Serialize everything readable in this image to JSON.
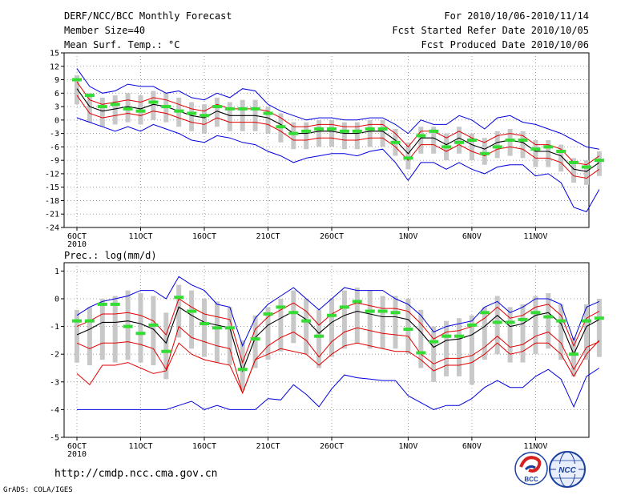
{
  "header": {
    "title": "DERF/NCC/BCC Monthly Forecast",
    "member_size": "Member Size=40",
    "variable": "Mean Surf. Temp.: °C",
    "period": "For 2010/10/06-2010/11/14",
    "started": "Fcst Started Refer Date 2010/10/05",
    "produced": "Fcst Produced Date 2010/10/06"
  },
  "footer": {
    "url": "http://cmdp.ncc.cma.gov.cn",
    "grads": "GrADS: COLA/IGES",
    "logo1_text": "BCC",
    "logo2_text": "NCC"
  },
  "colors": {
    "ensemble_bar": "#c8c8c8",
    "mean": "#000000",
    "spread": "#e00000",
    "extreme": "#0000e0",
    "green": "#33dd33"
  },
  "chart_data": [
    {
      "type": "line",
      "name": "temperature",
      "title": "Mean Surf. Temp.: °C",
      "ylim": [
        -24,
        15
      ],
      "yticks": [
        15,
        12,
        9,
        6,
        3,
        0,
        -3,
        -6,
        -9,
        -12,
        -15,
        -18,
        -21,
        -24
      ],
      "xticks": [
        {
          "day": 0,
          "label": "6OCT"
        },
        {
          "day": 5,
          "label": "11OCT"
        },
        {
          "day": 10,
          "label": "16OCT"
        },
        {
          "day": 15,
          "label": "21OCT"
        },
        {
          "day": 20,
          "label": "26OCT"
        },
        {
          "day": 26,
          "label": "1NOV"
        },
        {
          "day": 31,
          "label": "6NOV"
        },
        {
          "day": 36,
          "label": "11NOV"
        }
      ],
      "year_label": "2010",
      "mean": [
        7.0,
        3.0,
        2.0,
        2.5,
        3.0,
        2.5,
        3.5,
        3.0,
        2.0,
        1.0,
        0.5,
        2.0,
        1.0,
        1.0,
        1.0,
        0.5,
        -1.0,
        -3.0,
        -3.0,
        -2.5,
        -2.5,
        -3.0,
        -3.0,
        -2.5,
        -2.5,
        -4.5,
        -7.5,
        -4.0,
        -4.0,
        -5.5,
        -4.0,
        -5.5,
        -6.5,
        -5.0,
        -4.5,
        -5.0,
        -7.0,
        -7.0,
        -8.0,
        -11.0,
        -11.5,
        -9.5
      ],
      "upper": [
        8.5,
        4.5,
        3.5,
        4.0,
        4.5,
        4.0,
        5.0,
        4.5,
        3.5,
        2.5,
        2.0,
        3.5,
        2.5,
        2.5,
        2.5,
        2.0,
        0.5,
        -1.5,
        -1.5,
        -1.0,
        -1.0,
        -1.5,
        -1.5,
        -1.0,
        -1.0,
        -3.0,
        -6.0,
        -2.5,
        -2.5,
        -4.0,
        -2.5,
        -4.0,
        -5.0,
        -3.5,
        -3.0,
        -3.5,
        -5.5,
        -5.5,
        -6.5,
        -9.5,
        -10.0,
        -8.0
      ],
      "lower": [
        5.5,
        1.5,
        0.5,
        1.0,
        1.5,
        1.0,
        2.0,
        1.5,
        0.5,
        -0.5,
        -1.0,
        0.5,
        -0.5,
        -0.5,
        -0.5,
        -1.0,
        -2.5,
        -4.5,
        -4.5,
        -4.0,
        -4.0,
        -4.5,
        -4.5,
        -4.0,
        -4.0,
        -6.0,
        -9.0,
        -5.5,
        -5.5,
        -7.0,
        -5.5,
        -7.0,
        -8.0,
        -6.5,
        -6.0,
        -6.5,
        -8.5,
        -8.5,
        -9.5,
        -12.5,
        -13.0,
        -11.0
      ],
      "max": [
        11.5,
        7.5,
        6.0,
        6.5,
        8.0,
        7.5,
        7.5,
        6.0,
        6.5,
        5.0,
        4.5,
        6.0,
        5.0,
        7.0,
        6.5,
        3.5,
        2.0,
        1.0,
        0.0,
        0.5,
        0.5,
        0.0,
        0.0,
        0.5,
        0.5,
        -1.0,
        -3.0,
        0.0,
        -1.0,
        -1.0,
        1.0,
        0.0,
        -2.0,
        0.5,
        1.0,
        -0.5,
        -1.0,
        -2.0,
        -3.0,
        -4.5,
        -6.0,
        -6.5
      ],
      "min": [
        0.5,
        -0.5,
        -1.5,
        -2.5,
        -1.5,
        -2.5,
        -1.0,
        -2.0,
        -3.0,
        -4.5,
        -5.0,
        -3.5,
        -4.0,
        -5.0,
        -5.5,
        -7.0,
        -8.0,
        -9.5,
        -8.5,
        -8.0,
        -7.5,
        -7.5,
        -8.0,
        -7.0,
        -6.5,
        -9.5,
        -13.5,
        -9.5,
        -9.5,
        -11.0,
        -9.5,
        -11.0,
        -12.0,
        -10.5,
        -10.0,
        -10.0,
        -12.5,
        -12.0,
        -14.0,
        -19.5,
        -20.5,
        -15.5
      ],
      "bar_high": [
        10.0,
        6.0,
        5.0,
        5.5,
        6.0,
        5.5,
        6.5,
        6.0,
        5.0,
        4.0,
        3.5,
        5.0,
        4.0,
        4.5,
        4.5,
        3.0,
        1.5,
        -0.5,
        -0.5,
        0.0,
        0.0,
        -0.5,
        -0.5,
        0.0,
        0.0,
        -2.0,
        -5.0,
        -1.5,
        -1.5,
        -3.0,
        -1.5,
        -3.0,
        -4.0,
        -2.5,
        -2.0,
        -2.5,
        -4.5,
        -4.5,
        -5.5,
        -8.5,
        -9.0,
        -7.0
      ],
      "bar_low": [
        3.5,
        -0.5,
        -1.5,
        -1.0,
        -0.5,
        -1.0,
        0.0,
        -0.5,
        -1.5,
        -2.5,
        -3.0,
        -1.5,
        -2.5,
        -2.5,
        -2.5,
        -3.0,
        -5.0,
        -6.5,
        -6.5,
        -6.0,
        -6.0,
        -6.5,
        -6.5,
        -6.0,
        -6.0,
        -8.0,
        -11.0,
        -7.5,
        -7.5,
        -9.0,
        -7.5,
        -9.0,
        -10.0,
        -8.5,
        -8.0,
        -8.5,
        -10.5,
        -10.5,
        -11.5,
        -14.0,
        -14.5,
        -12.5
      ],
      "green": [
        9.0,
        5.5,
        3.0,
        3.5,
        2.5,
        2.0,
        4.0,
        3.0,
        2.0,
        1.5,
        1.0,
        3.0,
        2.5,
        2.5,
        2.5,
        1.5,
        -1.5,
        -3.0,
        -2.5,
        -2.0,
        -2.0,
        -2.5,
        -2.5,
        -2.0,
        -2.0,
        -5.0,
        -8.5,
        -3.5,
        -2.5,
        -6.0,
        -5.0,
        -4.5,
        -7.5,
        -6.0,
        -4.5,
        -4.5,
        -6.5,
        -6.0,
        -7.0,
        -9.5,
        -10.5,
        -9.0
      ]
    },
    {
      "type": "line",
      "name": "precipitation",
      "title": "Prec.: log(mm/d)",
      "ylim": [
        -5,
        1.3
      ],
      "yticks": [
        1,
        0,
        -1,
        -2,
        -3,
        -4,
        -5
      ],
      "xticks": [
        {
          "day": 0,
          "label": "6OCT"
        },
        {
          "day": 5,
          "label": "11OCT"
        },
        {
          "day": 10,
          "label": "16OCT"
        },
        {
          "day": 15,
          "label": "21OCT"
        },
        {
          "day": 20,
          "label": "26OCT"
        },
        {
          "day": 26,
          "label": "1NOV"
        },
        {
          "day": 31,
          "label": "6NOV"
        },
        {
          "day": 36,
          "label": "11NOV"
        }
      ],
      "year_label": "2010",
      "mean": [
        -1.3,
        -1.1,
        -0.85,
        -0.85,
        -0.8,
        -0.9,
        -1.1,
        -1.6,
        -0.3,
        -0.6,
        -0.85,
        -0.95,
        -1.05,
        -2.6,
        -1.4,
        -0.95,
        -0.7,
        -0.45,
        -0.75,
        -1.25,
        -0.85,
        -0.6,
        -0.45,
        -0.55,
        -0.65,
        -0.65,
        -0.75,
        -1.2,
        -1.75,
        -1.5,
        -1.45,
        -1.3,
        -1.0,
        -0.6,
        -1.0,
        -0.9,
        -0.6,
        -0.5,
        -0.9,
        -2.0,
        -1.0,
        -0.75
      ],
      "upper": [
        -1.0,
        -0.8,
        -0.55,
        -0.55,
        -0.5,
        -0.6,
        -0.8,
        -1.3,
        0.0,
        -0.3,
        -0.55,
        -0.65,
        -0.75,
        -2.3,
        -1.1,
        -0.65,
        -0.4,
        -0.15,
        -0.45,
        -0.95,
        -0.55,
        -0.3,
        -0.15,
        -0.25,
        -0.35,
        -0.35,
        -0.45,
        -0.9,
        -1.45,
        -1.2,
        -1.15,
        -1.0,
        -0.7,
        -0.3,
        -0.7,
        -0.6,
        -0.3,
        -0.2,
        -0.6,
        -1.7,
        -0.7,
        -0.45
      ],
      "lower": [
        -1.6,
        -1.8,
        -1.6,
        -1.6,
        -1.55,
        -1.65,
        -1.8,
        -2.55,
        -1.0,
        -1.4,
        -1.55,
        -1.7,
        -1.8,
        -3.4,
        -2.2,
        -1.7,
        -1.4,
        -1.2,
        -1.5,
        -2.1,
        -1.55,
        -1.2,
        -1.05,
        -1.15,
        -1.25,
        -1.3,
        -1.35,
        -2.0,
        -2.35,
        -2.15,
        -2.15,
        -2.05,
        -1.75,
        -1.35,
        -1.75,
        -1.65,
        -1.35,
        -1.2,
        -1.6,
        -2.55,
        -1.75,
        -1.55
      ],
      "spread_low": [
        -2.7,
        -3.1,
        -2.4,
        -2.4,
        -2.3,
        -2.5,
        -2.7,
        -2.6,
        -1.6,
        -2.0,
        -2.2,
        -2.3,
        -2.4,
        -3.4,
        -2.2,
        -2.0,
        -1.8,
        -1.9,
        -2.0,
        -2.4,
        -2.0,
        -1.7,
        -1.6,
        -1.7,
        -1.8,
        -1.9,
        -1.9,
        -2.2,
        -2.6,
        -2.4,
        -2.4,
        -2.3,
        -2.0,
        -1.6,
        -2.0,
        -1.9,
        -1.6,
        -1.6,
        -2.0,
        -2.8,
        -2.0,
        -1.5
      ],
      "max": [
        -0.6,
        -0.3,
        -0.1,
        0.0,
        0.1,
        0.3,
        0.3,
        0.0,
        0.8,
        0.5,
        0.3,
        -0.2,
        -0.3,
        -1.7,
        -0.7,
        -0.2,
        0.1,
        0.4,
        0.0,
        -0.4,
        0.0,
        0.4,
        0.3,
        0.3,
        0.3,
        0.0,
        -0.2,
        -0.6,
        -1.2,
        -1.0,
        -0.9,
        -0.8,
        -0.3,
        -0.1,
        -0.5,
        -0.3,
        0.0,
        0.0,
        -0.2,
        -1.5,
        -0.3,
        -0.1
      ],
      "min": [
        -4.0,
        -4.0,
        -4.0,
        -4.0,
        -4.0,
        -4.0,
        -4.0,
        -4.0,
        -3.85,
        -3.7,
        -4.0,
        -3.85,
        -4.0,
        -4.0,
        -4.0,
        -3.6,
        -3.65,
        -3.1,
        -3.45,
        -3.9,
        -3.25,
        -2.75,
        -2.85,
        -2.9,
        -2.95,
        -2.95,
        -3.5,
        -3.75,
        -4.0,
        -3.85,
        -3.85,
        -3.6,
        -3.2,
        -2.95,
        -3.2,
        -3.2,
        -2.8,
        -2.55,
        -2.9,
        -3.9,
        -2.8,
        -2.5
      ],
      "bar_high": [
        -0.4,
        -0.3,
        0.0,
        0.1,
        0.3,
        0.2,
        0.1,
        -0.5,
        0.5,
        0.3,
        0.0,
        -0.1,
        -0.3,
        -1.5,
        -0.6,
        -0.3,
        0.0,
        0.3,
        0.0,
        -0.4,
        0.0,
        0.3,
        0.4,
        0.3,
        0.1,
        0.1,
        0.0,
        -0.4,
        -1.0,
        -0.8,
        -0.7,
        -0.6,
        -0.3,
        0.1,
        -0.3,
        -0.2,
        0.1,
        0.2,
        -0.2,
        -1.4,
        -0.2,
        0.0
      ],
      "bar_low": [
        -2.3,
        -2.4,
        -2.2,
        -2.3,
        -2.2,
        -2.3,
        -2.4,
        -2.9,
        -1.4,
        -1.8,
        -2.1,
        -2.3,
        -2.4,
        -3.3,
        -2.5,
        -2.2,
        -1.9,
        -1.6,
        -2.0,
        -2.5,
        -2.1,
        -1.8,
        -1.6,
        -1.8,
        -1.8,
        -1.8,
        -2.0,
        -2.5,
        -3.0,
        -2.8,
        -2.8,
        -3.1,
        -2.2,
        -2.0,
        -2.3,
        -2.3,
        -2.0,
        -1.8,
        -2.2,
        -2.8,
        -2.2,
        -2.1
      ],
      "green": [
        -0.8,
        -0.8,
        -0.2,
        -0.2,
        -1.0,
        -1.25,
        -0.95,
        -1.9,
        0.05,
        -0.45,
        -0.9,
        -1.05,
        -1.05,
        -2.55,
        -1.45,
        -0.55,
        -0.3,
        -0.5,
        -0.8,
        -1.35,
        -0.6,
        -0.3,
        -0.1,
        -0.45,
        -0.45,
        -0.5,
        -1.1,
        -1.95,
        -1.55,
        -1.35,
        -1.35,
        -0.95,
        -0.5,
        -0.85,
        -0.85,
        -0.75,
        -0.5,
        -0.65,
        -0.8,
        -2.0,
        -0.8,
        -0.7
      ]
    }
  ]
}
